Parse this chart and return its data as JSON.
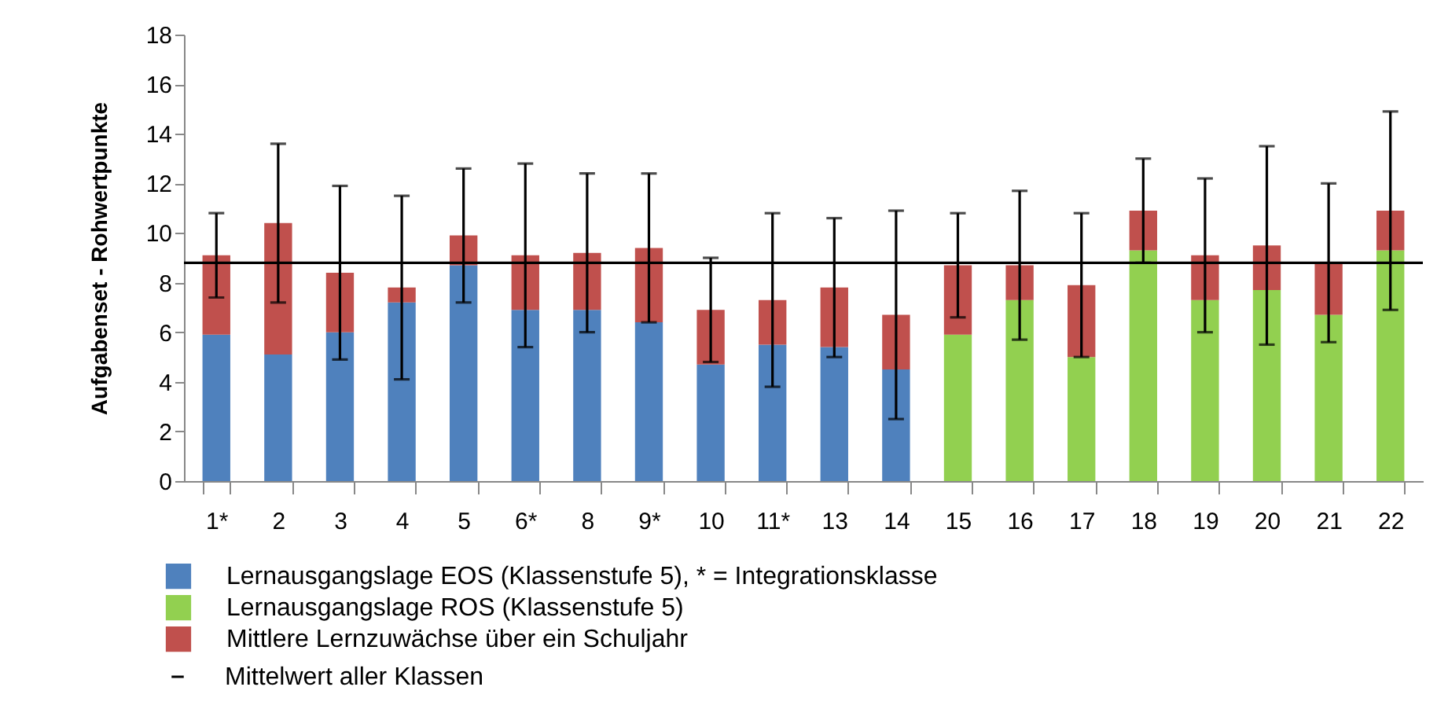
{
  "chart_data": {
    "type": "bar",
    "stacked": true,
    "ylabel": "Aufgabenset - Rohwertpunkte",
    "categories": [
      "1*",
      "2",
      "3",
      "4",
      "5",
      "6*",
      "8",
      "9*",
      "10",
      "11*",
      "13",
      "14",
      "15",
      "16",
      "17",
      "18",
      "19",
      "20",
      "21",
      "22"
    ],
    "series": [
      {
        "name": "Lernausgangslage EOS (Klassenstufe 5), * = Integrationsklasse",
        "color": "#4f81bd",
        "values": [
          5.9,
          5.1,
          6.0,
          7.2,
          8.7,
          6.9,
          6.9,
          6.4,
          4.7,
          5.5,
          5.4,
          4.5,
          null,
          null,
          null,
          null,
          null,
          null,
          null,
          null
        ]
      },
      {
        "name": "Lernausgangslage ROS (Klassenstufe 5)",
        "color": "#92d050",
        "values": [
          null,
          null,
          null,
          null,
          null,
          null,
          null,
          null,
          null,
          null,
          null,
          null,
          5.9,
          7.3,
          5.0,
          9.3,
          7.3,
          7.7,
          6.7,
          9.3
        ]
      },
      {
        "name": "Mittlere Lernzuwächse über ein Schuljahr",
        "color": "#c0504d",
        "values": [
          3.2,
          5.3,
          2.4,
          0.6,
          1.2,
          2.2,
          2.3,
          3.0,
          2.2,
          1.8,
          2.4,
          2.2,
          2.8,
          1.4,
          2.9,
          1.6,
          1.8,
          1.8,
          2.1,
          1.6
        ],
        "errors": [
          1.7,
          3.2,
          3.5,
          3.7,
          2.7,
          3.7,
          3.2,
          3.0,
          2.1,
          3.5,
          2.8,
          4.2,
          2.1,
          3.0,
          2.9,
          2.1,
          3.1,
          4.0,
          3.2,
          4.0
        ]
      }
    ],
    "ylim": [
      0,
      18
    ],
    "yticks": [
      0,
      2,
      4,
      6,
      8,
      10,
      12,
      14,
      16,
      18
    ],
    "ref_lines": [
      {
        "axis": "y",
        "value": 8.8,
        "label": "Mittelwert aller Klassen",
        "color": "#000000"
      }
    ],
    "legend": "bottom left",
    "grid": false
  }
}
